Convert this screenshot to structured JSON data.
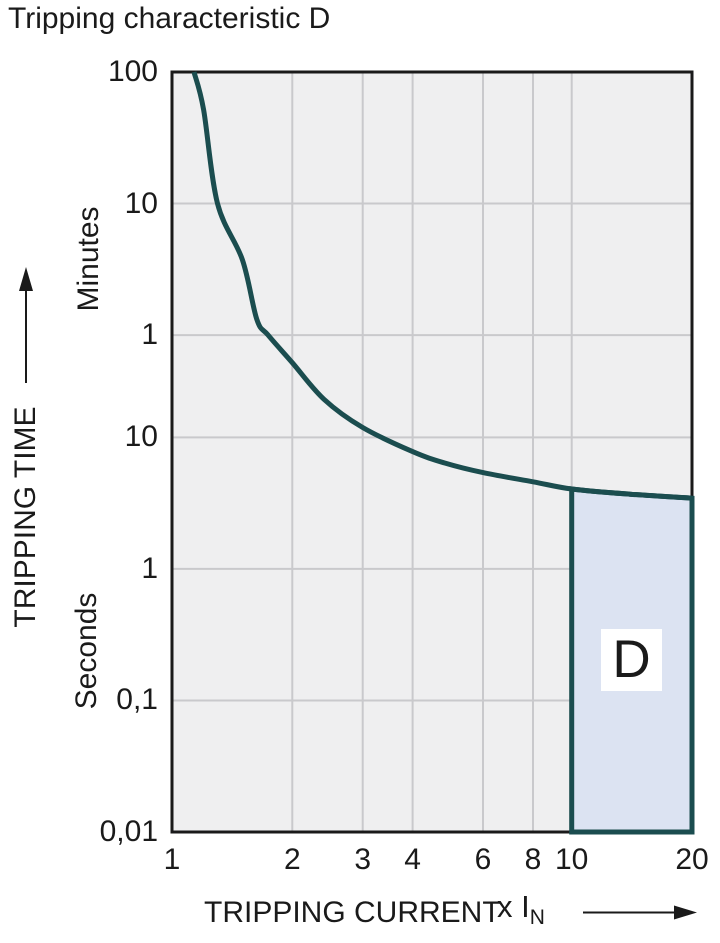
{
  "chart_data": {
    "type": "line",
    "title": "Tripping characteristic D",
    "x_axis": {
      "label": "TRIPPING CURRENT",
      "multiplier_prefix": "x I",
      "multiplier_sub": "N",
      "scale": "log",
      "range": [
        1,
        20
      ],
      "ticks": [
        {
          "label": "1",
          "value": 1
        },
        {
          "label": "2",
          "value": 2
        },
        {
          "label": "3",
          "value": 3
        },
        {
          "label": "4",
          "value": 4
        },
        {
          "label": "6",
          "value": 6
        },
        {
          "label": "8",
          "value": 8
        },
        {
          "label": "10",
          "value": 10
        },
        {
          "label": "20",
          "value": 20
        }
      ],
      "gridline_values": [
        2,
        3,
        4,
        6,
        8,
        10
      ]
    },
    "y_axis": {
      "label": "TRIPPING TIME",
      "scale": "log",
      "units": [
        "Minutes",
        "Seconds"
      ],
      "range_seconds": [
        0.01,
        6000
      ],
      "ticks": [
        {
          "label": "100",
          "unit": "minutes",
          "seconds": 6000
        },
        {
          "label": "10",
          "unit": "minutes",
          "seconds": 600
        },
        {
          "label": "1",
          "unit": "minutes",
          "seconds": 60
        },
        {
          "label": "10",
          "unit": "seconds",
          "seconds": 10
        },
        {
          "label": "1",
          "unit": "seconds",
          "seconds": 1
        },
        {
          "label": "0,1",
          "unit": "seconds",
          "seconds": 0.1
        },
        {
          "label": "0,01",
          "unit": "seconds",
          "seconds": 0.01
        }
      ],
      "gridline_seconds": [
        600,
        60,
        10,
        1,
        0.1
      ]
    },
    "series": [
      {
        "name": "D tripping curve",
        "points_I_seconds": [
          [
            1.135,
            6000
          ],
          [
            1.2,
            3100
          ],
          [
            1.3,
            600
          ],
          [
            1.5,
            224
          ],
          [
            1.63,
            79
          ],
          [
            1.74,
            60
          ],
          [
            2.0,
            37
          ],
          [
            2.4,
            19.5
          ],
          [
            3.0,
            11.9
          ],
          [
            4.0,
            7.8
          ],
          [
            4.8,
            6.4
          ],
          [
            6.0,
            5.4
          ],
          [
            8.0,
            4.6
          ],
          [
            10.0,
            4.05
          ],
          [
            14.0,
            3.7
          ],
          [
            20.0,
            3.45
          ]
        ]
      }
    ],
    "shaded_region": {
      "label": "D",
      "I_from": 10,
      "I_to": 20,
      "bottom_seconds": 0.01,
      "top_follows_curve": true
    },
    "grid": true,
    "legend": false
  },
  "colors": {
    "curve": "#1b4d4f",
    "region_fill": "#dce3f2",
    "plot_background": "#efeff0",
    "gridline": "#c9c9cc",
    "plot_border": "#1a1a1a",
    "text": "#1a1a1a",
    "region_label_background": "#ffffff"
  }
}
